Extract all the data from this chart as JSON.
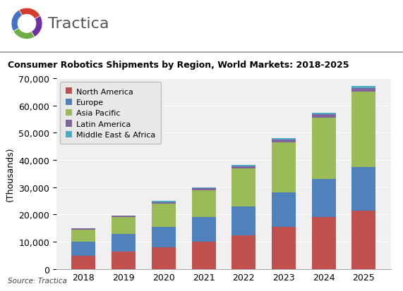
{
  "years": [
    "2018",
    "2019",
    "2020",
    "2021",
    "2022",
    "2023",
    "2024",
    "2025"
  ],
  "north_america": [
    5000,
    6500,
    8000,
    10000,
    12500,
    15500,
    19000,
    21500
  ],
  "europe": [
    5000,
    6500,
    7500,
    9000,
    10500,
    12500,
    14000,
    16000
  ],
  "asia_pacific": [
    4500,
    6000,
    8500,
    10000,
    14000,
    18500,
    22500,
    27500
  ],
  "latin_america": [
    400,
    500,
    600,
    700,
    800,
    1000,
    1200,
    1400
  ],
  "middle_east_africa": [
    100,
    200,
    300,
    300,
    400,
    500,
    600,
    700
  ],
  "colors": {
    "north_america": "#c0504d",
    "europe": "#4f81bd",
    "asia_pacific": "#9bbb59",
    "latin_america": "#8064a2",
    "middle_east_africa": "#4bacc6"
  },
  "title": "Consumer Robotics Shipments by Region, World Markets: 2018-2025",
  "ylabel": "(Thousands)",
  "ylim": [
    0,
    70000
  ],
  "yticks": [
    0,
    10000,
    20000,
    30000,
    40000,
    50000,
    60000,
    70000
  ],
  "source": "Source: Tractica",
  "header_text": "Tractica",
  "legend_labels": [
    "North America",
    "Europe",
    "Asia Pacific",
    "Latin America",
    "Middle East & Africa"
  ],
  "background_color": "#ffffff",
  "plot_bg": "#f0f0f0"
}
